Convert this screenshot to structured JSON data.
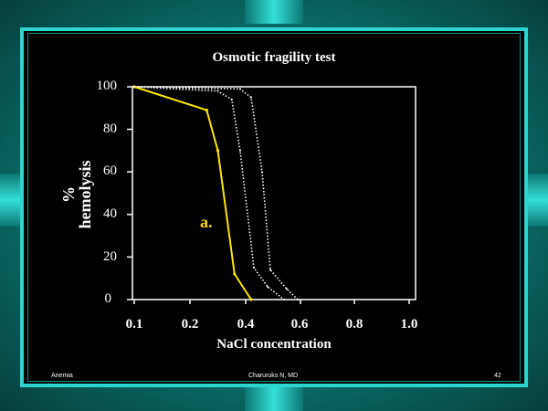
{
  "slide": {
    "footer_left": "Anemia",
    "footer_center": "Charuruks N, MD",
    "footer_right": "42",
    "colors": {
      "frame": "#2cd6cf",
      "background": "#000000",
      "highlight": "#ffe600"
    }
  },
  "chart_data": {
    "type": "line",
    "title": "Osmotic fragility test",
    "xlabel": "NaCl concentration",
    "ylabel_line1": "%",
    "ylabel_line2": "hemolysis",
    "x_tick_labels": [
      "0.1",
      "0.2",
      "0.4",
      "0.6",
      "0.8",
      "1.0"
    ],
    "y_tick_labels": [
      "100",
      "80",
      "60",
      "40",
      "20",
      "0"
    ],
    "ylim": [
      0,
      100
    ],
    "annotation": "a.",
    "series": [
      {
        "style": "solid",
        "color": "#ffe600",
        "x": [
          0.1,
          0.26,
          0.3,
          0.36,
          0.42
        ],
        "y": [
          100,
          89,
          70,
          12,
          0
        ]
      },
      {
        "style": "dotted",
        "color": "#ffffff",
        "x": [
          0.1,
          0.3,
          0.35,
          0.38,
          0.43,
          0.48,
          0.54
        ],
        "y": [
          100,
          98,
          94,
          70,
          15,
          6,
          0
        ]
      },
      {
        "style": "dotted",
        "color": "#ffffff",
        "x": [
          0.1,
          0.38,
          0.42,
          0.46,
          0.49,
          0.55,
          0.59
        ],
        "y": [
          100,
          99,
          95,
          60,
          14,
          5,
          0
        ]
      }
    ]
  }
}
